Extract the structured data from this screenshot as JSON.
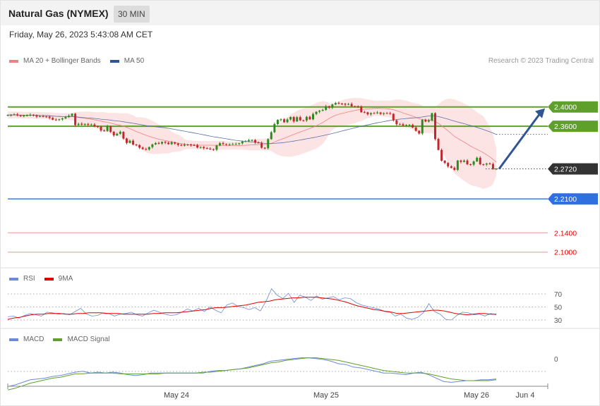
{
  "header": {
    "title": "Natural Gas (NYMEX)",
    "timeframe": "30 MIN",
    "timestamp": "Friday, May 26, 2023 5:43:08 AM CET",
    "copyright": "Research © 2023 Trading Central"
  },
  "legend": {
    "price": [
      {
        "name": "MA 20 + Bollinger Bands",
        "color": "#f08080"
      },
      {
        "name": "MA 50",
        "color": "#2f5597"
      }
    ],
    "rsi": [
      {
        "name": "RSI",
        "color": "#6d8ad8"
      },
      {
        "name": "9MA",
        "color": "#e00000"
      }
    ],
    "macd": [
      {
        "name": "MACD",
        "color": "#6d8ad8"
      },
      {
        "name": "MACD Signal",
        "color": "#5ea02b"
      }
    ]
  },
  "chart_data": [
    {
      "type": "candlestick",
      "panel": "price",
      "x_labels": [
        "May 24",
        "May 25",
        "May 26",
        "Jun 4"
      ],
      "close_series": [
        2.3832,
        2.3834,
        2.3846,
        2.3825,
        2.3815,
        2.3821,
        2.3823,
        2.3839,
        2.3827,
        2.3799,
        2.3807,
        2.3803,
        2.3799,
        2.3773,
        2.3736,
        2.3732,
        2.3744,
        2.3762,
        2.3791,
        2.3818,
        2.3859,
        2.3625,
        2.3652,
        2.3633,
        2.3649,
        2.3631,
        2.3636,
        2.3602,
        2.3591,
        2.3512,
        2.3503,
        2.3601,
        2.3485,
        2.3412,
        2.3445,
        2.3485,
        2.3347,
        2.3257,
        2.3301,
        2.3223,
        2.3212,
        2.3159,
        2.313,
        2.3121,
        2.317,
        2.3225,
        2.3253,
        2.3243,
        2.3278,
        2.3261,
        2.3232,
        2.327,
        2.3244,
        2.3214,
        2.3201,
        2.3223,
        2.3221,
        2.321,
        2.3208,
        2.3162,
        2.3173,
        2.3148,
        2.3138,
        2.3128,
        2.3116,
        2.3201,
        2.3251,
        2.3233,
        2.3224,
        2.3229,
        2.3234,
        2.3235,
        2.3249,
        2.3286,
        2.3291,
        2.3311,
        2.3317,
        2.3264,
        2.3257,
        2.3157,
        2.3147,
        2.3334,
        2.3478,
        2.3645,
        2.3733,
        2.3744,
        2.3684,
        2.3741,
        2.3792,
        2.3701,
        2.3788,
        2.3725,
        2.372,
        2.3796,
        2.3744,
        2.3854,
        2.39,
        2.3921,
        2.3939,
        2.4014,
        2.3985,
        2.405,
        2.4081,
        2.407,
        2.4065,
        2.4047,
        2.4061,
        2.4015,
        2.4014,
        2.4008,
        2.3891,
        2.3889,
        2.3847,
        2.3871,
        2.387,
        2.3886,
        2.3856,
        2.387,
        2.3869,
        2.3858,
        2.3723,
        2.3642,
        2.3641,
        2.3616,
        2.3629,
        2.3629,
        2.3575,
        2.3507,
        2.3452,
        2.3733,
        2.3697,
        2.3723,
        2.387,
        2.3338,
        2.3112,
        2.2889,
        2.2843,
        2.2772,
        2.2741,
        2.27,
        2.2893,
        2.2865,
        2.2892,
        2.2816,
        2.2808,
        2.2874,
        2.295,
        2.2815,
        2.281,
        2.283,
        2.282,
        2.272,
        2.2725
      ],
      "support_resistance": [
        {
          "label": "2.4000",
          "value": 2.4,
          "type": "resistance",
          "color": "#5ea02b"
        },
        {
          "label": "2.3600",
          "value": 2.36,
          "type": "resistance",
          "color": "#5ea02b"
        },
        {
          "label": "2.2720",
          "value": 2.272,
          "type": "last",
          "color": "#333333"
        },
        {
          "label": "2.2100",
          "value": 2.21,
          "type": "pivot",
          "color": "#2f6fe0"
        },
        {
          "label": "2.1400",
          "value": 2.14,
          "type": "support",
          "color": "#e04040"
        },
        {
          "label": "2.1000",
          "value": 2.1,
          "type": "support",
          "color": "#e04040"
        }
      ],
      "projection": {
        "from": 2.272,
        "to": 2.4,
        "color": "#2f5597"
      }
    },
    {
      "type": "line",
      "panel": "rsi",
      "y_ticks": [
        70,
        50,
        30
      ],
      "series": [
        {
          "name": "RSI",
          "color": "#6d8ad8",
          "values": [
            35,
            36,
            33,
            37,
            40,
            38,
            36,
            42,
            41,
            39,
            40,
            38,
            43,
            48,
            39,
            36,
            37,
            41,
            40,
            36,
            39,
            40,
            42,
            38,
            36,
            41,
            45,
            42,
            39,
            37,
            38,
            42,
            47,
            44,
            48,
            43,
            50,
            45,
            41,
            53,
            56,
            51,
            49,
            46,
            49,
            44,
            59,
            78,
            68,
            63,
            71,
            57,
            68,
            65,
            60,
            67,
            62,
            64,
            66,
            61,
            64,
            63,
            57,
            53,
            51,
            49,
            47,
            44,
            43,
            36,
            39,
            33,
            31,
            34,
            41,
            55,
            43,
            39,
            31,
            30,
            37,
            42,
            41,
            38,
            39,
            36,
            40,
            38
          ]
        },
        {
          "name": "9MA",
          "color": "#e00000",
          "values": [
            31,
            33,
            34,
            36,
            38,
            39,
            39,
            40,
            40,
            40,
            39,
            39,
            40,
            40,
            41,
            41,
            41,
            40,
            40,
            40,
            39,
            39,
            39,
            39,
            39,
            40,
            40,
            41,
            41,
            41,
            42,
            43,
            44,
            45,
            46,
            48,
            49,
            49,
            50,
            51,
            52,
            53,
            55,
            57,
            58,
            59,
            61,
            62,
            63,
            64,
            64,
            65,
            65,
            65,
            64,
            63,
            62,
            60,
            58,
            55,
            52,
            50,
            48,
            46,
            45,
            43,
            42,
            40,
            40,
            41,
            42,
            43,
            44,
            45,
            45,
            44,
            42,
            40,
            39,
            38,
            39,
            40,
            40,
            39,
            39
          ]
        }
      ]
    },
    {
      "type": "line",
      "panel": "macd",
      "y_ticks": [
        0
      ],
      "series": [
        {
          "name": "MACD",
          "color": "#6d8ad8",
          "values": [
            -0.022,
            -0.02,
            -0.017,
            -0.014,
            -0.013,
            -0.012,
            -0.01,
            -0.009,
            -0.007,
            -0.005,
            -0.004,
            -0.006,
            -0.005,
            -0.006,
            -0.005,
            -0.006,
            -0.008,
            -0.009,
            -0.008,
            -0.006,
            -0.006,
            -0.006,
            -0.006,
            -0.006,
            -0.006,
            -0.006,
            -0.006,
            -0.004,
            -0.003,
            -0.003,
            -0.002,
            -0.001,
            0.001,
            0.003,
            0.005,
            0.008,
            0.009,
            0.01,
            0.011,
            0.012,
            0.012,
            0.011,
            0.01,
            0.008,
            0.005,
            0.004,
            0.001,
            0.0,
            -0.002,
            -0.004,
            -0.006,
            -0.006,
            -0.007,
            -0.008,
            -0.006,
            -0.005,
            -0.008,
            -0.012,
            -0.016,
            -0.017,
            -0.016,
            -0.015,
            -0.015,
            -0.014,
            -0.014,
            -0.013
          ]
        },
        {
          "name": "MACD Signal",
          "color": "#5ea02b",
          "values": [
            -0.026,
            -0.024,
            -0.021,
            -0.018,
            -0.016,
            -0.014,
            -0.012,
            -0.011,
            -0.009,
            -0.007,
            -0.007,
            -0.006,
            -0.006,
            -0.006,
            -0.006,
            -0.007,
            -0.007,
            -0.007,
            -0.007,
            -0.007,
            -0.007,
            -0.006,
            -0.006,
            -0.006,
            -0.006,
            -0.006,
            -0.005,
            -0.005,
            -0.004,
            -0.003,
            -0.002,
            -0.001,
            0.0,
            0.002,
            0.004,
            0.006,
            0.007,
            0.009,
            0.01,
            0.011,
            0.012,
            0.012,
            0.011,
            0.01,
            0.009,
            0.007,
            0.005,
            0.003,
            0.001,
            -0.001,
            -0.003,
            -0.004,
            -0.005,
            -0.006,
            -0.006,
            -0.006,
            -0.007,
            -0.009,
            -0.011,
            -0.013,
            -0.014,
            -0.015,
            -0.015,
            -0.015,
            -0.015,
            -0.014
          ]
        }
      ]
    }
  ]
}
